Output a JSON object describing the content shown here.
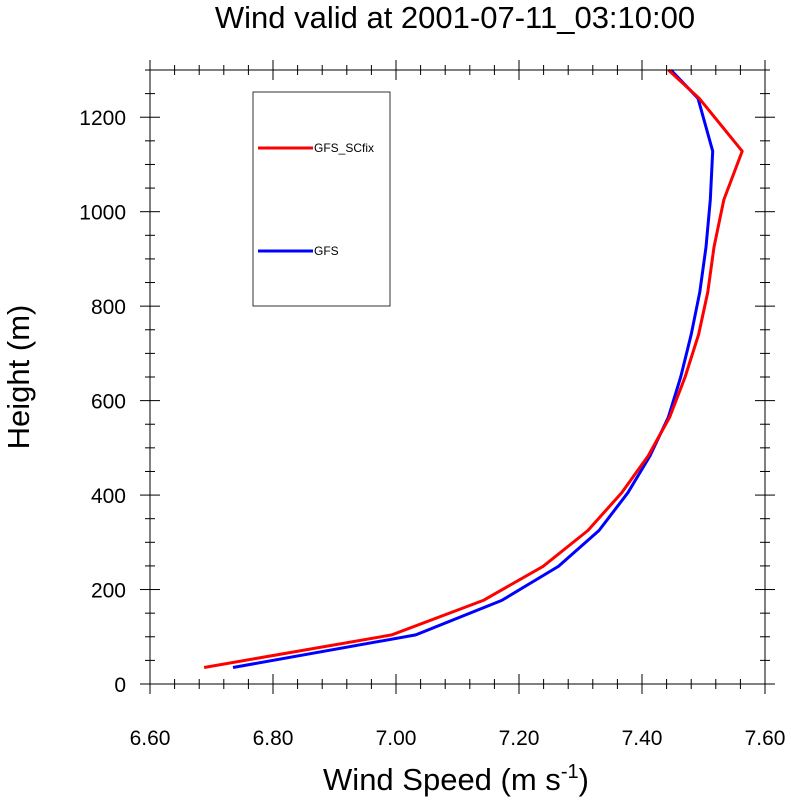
{
  "chart_data": {
    "type": "line",
    "title": "Wind valid at 2001-07-11_03:10:00",
    "xlabel": "Wind Speed (m s",
    "xlabel_sup": "-1",
    "xlabel_end": ")",
    "ylabel": "Height (m)",
    "xlim": [
      6.6,
      7.6
    ],
    "ylim": [
      0,
      1300
    ],
    "x_ticks": [
      6.6,
      6.8,
      7.0,
      7.2,
      7.4,
      7.6
    ],
    "x_tick_labels": [
      "6.60",
      "6.80",
      "7.00",
      "7.20",
      "7.40",
      "7.60"
    ],
    "y_ticks": [
      0,
      200,
      400,
      600,
      800,
      1000,
      1200
    ],
    "y_tick_labels": [
      "0",
      "200",
      "400",
      "600",
      "800",
      "1000",
      "1200"
    ],
    "grid": false,
    "legend_position": "top-left",
    "series": [
      {
        "name": "GFS_SCfix",
        "color": "#ff0000",
        "points": [
          [
            6.688,
            35
          ],
          [
            6.993,
            104
          ],
          [
            7.142,
            177
          ],
          [
            7.239,
            249
          ],
          [
            7.312,
            325
          ],
          [
            7.367,
            405
          ],
          [
            7.41,
            483
          ],
          [
            7.445,
            565
          ],
          [
            7.47,
            650
          ],
          [
            7.492,
            740
          ],
          [
            7.507,
            830
          ],
          [
            7.517,
            925
          ],
          [
            7.533,
            1025
          ],
          [
            7.563,
            1128
          ],
          [
            7.493,
            1240
          ],
          [
            7.443,
            1300
          ]
        ]
      },
      {
        "name": "GFS",
        "color": "#0000ff",
        "points": [
          [
            6.735,
            35
          ],
          [
            7.032,
            104
          ],
          [
            7.172,
            177
          ],
          [
            7.264,
            249
          ],
          [
            7.33,
            325
          ],
          [
            7.377,
            405
          ],
          [
            7.413,
            483
          ],
          [
            7.443,
            565
          ],
          [
            7.463,
            650
          ],
          [
            7.48,
            740
          ],
          [
            7.494,
            830
          ],
          [
            7.504,
            925
          ],
          [
            7.511,
            1025
          ],
          [
            7.515,
            1128
          ],
          [
            7.491,
            1240
          ],
          [
            7.447,
            1300
          ]
        ]
      }
    ]
  }
}
